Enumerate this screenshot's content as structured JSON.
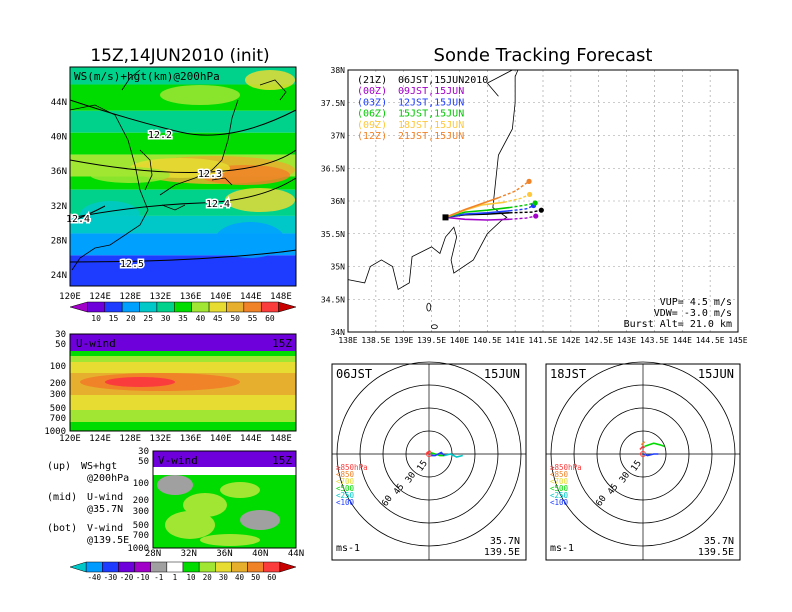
{
  "colors": {
    "bg": "#ffffff",
    "frame": "#000000",
    "ws_scale": [
      "#a000c8",
      "#6e00dc",
      "#1e3cff",
      "#00a0ff",
      "#00c8c8",
      "#00d28c",
      "#00dc00",
      "#a0e632",
      "#e6dc32",
      "#e6af2d",
      "#f08228",
      "#fa3c3c",
      "#c80000"
    ],
    "uv_scale": [
      "#00c8c8",
      "#009bff",
      "#1e3cff",
      "#6e00dc",
      "#a000c8",
      "#a0a0a0",
      "#ffffff",
      "#00dc00",
      "#a0e632",
      "#e6dc32",
      "#e6af2d",
      "#f08228",
      "#fa3c3c",
      "#c80000"
    ],
    "track": {
      "21Z": "#000000",
      "00Z": "#a000c8",
      "03Z": "#1e3cff",
      "06Z": "#00c800",
      "09Z": "#ffc83c",
      "12Z": "#f08228"
    }
  },
  "ws_panel": {
    "title": "15Z,14JUN2010 (init)",
    "label": "WS(m/s)+hgt(km)@200hPa",
    "lon_ticks": [
      "120E",
      "124E",
      "128E",
      "132E",
      "136E",
      "140E",
      "144E",
      "148E"
    ],
    "lat_ticks": [
      "24N",
      "28N",
      "32N",
      "36N",
      "40N",
      "44N"
    ],
    "contours": [
      "12.2",
      "12.3",
      "12.4",
      "12.4",
      "12.5"
    ],
    "scale_labels": [
      "10",
      "15",
      "20",
      "25",
      "30",
      "35",
      "40",
      "45",
      "50",
      "55",
      "60"
    ]
  },
  "u_panel": {
    "label": "U-wind",
    "time": "15Z",
    "lev_ticks": [
      "30",
      "50",
      "100",
      "200",
      "300",
      "500",
      "700",
      "1000"
    ],
    "lon_ticks": [
      "120E",
      "124E",
      "128E",
      "132E",
      "136E",
      "140E",
      "144E",
      "148E"
    ]
  },
  "v_panel": {
    "label": "V-wind",
    "time": "15Z",
    "lev_ticks": [
      "30",
      "50",
      "100",
      "200",
      "300",
      "500",
      "700",
      "1000"
    ],
    "lat_ticks": [
      "28N",
      "32N",
      "36N",
      "40N",
      "44N"
    ]
  },
  "legend": [
    {
      "key": "(up)",
      "text": "WS+hgt",
      "sub": "@200hPa"
    },
    {
      "key": "(mid)",
      "text": "U-wind",
      "sub": "@35.7N"
    },
    {
      "key": "(bot)",
      "text": "V-wind",
      "sub": "@139.5E"
    }
  ],
  "uv_scale_labels": [
    "-40",
    "-30",
    "-20",
    "-10",
    "-1",
    "1",
    "10",
    "20",
    "30",
    "40",
    "50",
    "60"
  ],
  "track_panel": {
    "title": "Sonde Tracking Forecast",
    "lon_ticks": [
      "138E",
      "138.5E",
      "139E",
      "139.5E",
      "140E",
      "140.5E",
      "141E",
      "141.5E",
      "142E",
      "142.5E",
      "143E",
      "143.5E",
      "144E",
      "144.5E",
      "145E"
    ],
    "lat_ticks": [
      "34N",
      "34.5N",
      "35N",
      "35.5N",
      "36N",
      "36.5N",
      "37N",
      "37.5N",
      "38N"
    ],
    "launches": [
      {
        "utc": "(21Z)",
        "jst": "06JST,15JUN2010",
        "color": "#000000"
      },
      {
        "utc": "(00Z)",
        "jst": "09JST,15JUN",
        "color": "#a000c8"
      },
      {
        "utc": "(03Z)",
        "jst": "12JST,15JUN",
        "color": "#1e3cff"
      },
      {
        "utc": "(06Z)",
        "jst": "15JST,15JUN",
        "color": "#00c800"
      },
      {
        "utc": "(09Z)",
        "jst": "18JST,15JUN",
        "color": "#ffc83c"
      },
      {
        "utc": "(12Z)",
        "jst": "21JST,15JUN",
        "color": "#f08228"
      }
    ],
    "vup": "VUP=  4.5 m/s",
    "vdw": "VDW= -3.0 m/s",
    "burst": "Burst Alt= 21.0 km"
  },
  "hodo_left": {
    "time": "06JST",
    "date": "15JUN",
    "lat": "35.7N",
    "lon": "139.5E",
    "unit": "ms-1"
  },
  "hodo_right": {
    "time": "18JST",
    "date": "15JUN",
    "lat": "35.7N",
    "lon": "139.5E",
    "unit": "ms-1"
  },
  "hodo_rings": [
    "15",
    "30",
    "45",
    "60"
  ],
  "hodo_levels": [
    {
      "label": "≥850hPa",
      "color": "#fa3c3c"
    },
    {
      "label": "<850",
      "color": "#f08228"
    },
    {
      "label": "<700",
      "color": "#e6dc32"
    },
    {
      "label": "<500",
      "color": "#00dc00"
    },
    {
      "label": "<250",
      "color": "#00c8c8"
    },
    {
      "label": "<100",
      "color": "#1e3cff"
    }
  ],
  "chart_data": [
    {
      "type": "heatmap",
      "title": "15Z,14JUN2010 (init)",
      "annotation": "WS(m/s)+hgt(km)@200hPa",
      "xlim": [
        120,
        150
      ],
      "ylim": [
        21,
        47
      ],
      "colorbar": [
        10,
        15,
        20,
        25,
        30,
        35,
        40,
        45,
        50,
        55,
        60
      ],
      "height_contours_km": [
        12.2,
        12.3,
        12.4,
        12.5
      ]
    },
    {
      "type": "heatmap",
      "title": "U-wind",
      "annotation": "15Z",
      "x": "longitude 120E-150E",
      "y": "pressure hPa (1000-30)",
      "colorbar": [
        -40,
        -30,
        -20,
        -10,
        -1,
        1,
        10,
        20,
        30,
        40,
        50,
        60
      ]
    },
    {
      "type": "heatmap",
      "title": "V-wind",
      "annotation": "15Z",
      "x": "latitude 28N-44N",
      "y": "pressure hPa (1000-30)",
      "colorbar": [
        -40,
        -30,
        -20,
        -10,
        -1,
        1,
        10,
        20,
        30,
        40,
        50,
        60
      ]
    },
    {
      "type": "line",
      "title": "Sonde Tracking Forecast",
      "xlim": [
        138,
        145
      ],
      "ylim": [
        34,
        38
      ],
      "launch": [
        139.75,
        35.75
      ],
      "series": [
        {
          "name": "(21Z) 06JST,15JUN2010",
          "color": "#000000",
          "x": [
            139.75,
            140.1,
            140.5,
            140.9,
            141.3,
            141.47
          ],
          "y": [
            35.75,
            35.79,
            35.8,
            35.82,
            35.83,
            35.86
          ]
        },
        {
          "name": "(00Z) 09JST,15JUN",
          "color": "#a000c8",
          "x": [
            139.75,
            140.1,
            140.5,
            140.9,
            141.2,
            141.37
          ],
          "y": [
            35.75,
            35.72,
            35.71,
            35.72,
            35.74,
            35.77
          ]
        },
        {
          "name": "(03Z) 12JST,15JUN",
          "color": "#1e3cff",
          "x": [
            139.75,
            140.1,
            140.5,
            140.9,
            141.2,
            141.33
          ],
          "y": [
            35.75,
            35.8,
            35.82,
            35.85,
            35.88,
            35.93
          ]
        },
        {
          "name": "(06Z) 15JST,15JUN",
          "color": "#00c800",
          "x": [
            139.75,
            140.1,
            140.5,
            140.9,
            141.2,
            141.36
          ],
          "y": [
            35.75,
            35.83,
            35.86,
            35.9,
            35.94,
            35.97
          ]
        },
        {
          "name": "(09Z) 18JST,15JUN",
          "color": "#ffc83c",
          "x": [
            139.75,
            140.1,
            140.4,
            140.8,
            141.1,
            141.26
          ],
          "y": [
            35.75,
            35.86,
            35.94,
            35.98,
            36.04,
            36.1
          ]
        },
        {
          "name": "(12Z) 21JST,15JUN",
          "color": "#f08228",
          "x": [
            139.75,
            140.1,
            140.4,
            140.7,
            141.0,
            141.25
          ],
          "y": [
            35.75,
            35.87,
            35.96,
            36.05,
            36.15,
            36.3
          ]
        }
      ]
    },
    {
      "type": "line",
      "title": "06JST 15JUN hodograph",
      "x_unit": "ms-1",
      "rings": [
        15,
        30,
        45,
        60
      ],
      "series": [
        {
          "name": "≥850hPa",
          "color": "#fa3c3c",
          "u": [
            0,
            -1,
            1
          ],
          "v": [
            0,
            1,
            2
          ]
        },
        {
          "name": "<500",
          "color": "#00dc00",
          "u": [
            1,
            4,
            7,
            10
          ],
          "v": [
            1,
            0,
            -1,
            -1
          ]
        },
        {
          "name": "<250",
          "color": "#00c8c8",
          "u": [
            10,
            14,
            18,
            22
          ],
          "v": [
            -1,
            0,
            -2,
            -1
          ]
        },
        {
          "name": "<100",
          "color": "#1e3cff",
          "u": [
            1,
            4,
            8,
            10
          ],
          "v": [
            -1,
            -1,
            1,
            -1
          ]
        }
      ]
    },
    {
      "type": "line",
      "title": "18JST 15JUN hodograph",
      "x_unit": "ms-1",
      "rings": [
        15,
        30,
        45,
        60
      ],
      "series": [
        {
          "name": "≥850hPa",
          "color": "#fa3c3c",
          "u": [
            -2,
            0,
            1
          ],
          "v": [
            3,
            5,
            4
          ]
        },
        {
          "name": "<850",
          "color": "#f08228",
          "u": [
            -1,
            1
          ],
          "v": [
            6,
            8
          ]
        },
        {
          "name": "<500",
          "color": "#00dc00",
          "u": [
            1,
            4,
            7,
            11,
            14
          ],
          "v": [
            5,
            6,
            7,
            6,
            5
          ]
        },
        {
          "name": "<100",
          "color": "#1e3cff",
          "u": [
            0,
            3,
            7,
            10
          ],
          "v": [
            0,
            -1,
            0,
            0
          ]
        }
      ]
    }
  ]
}
